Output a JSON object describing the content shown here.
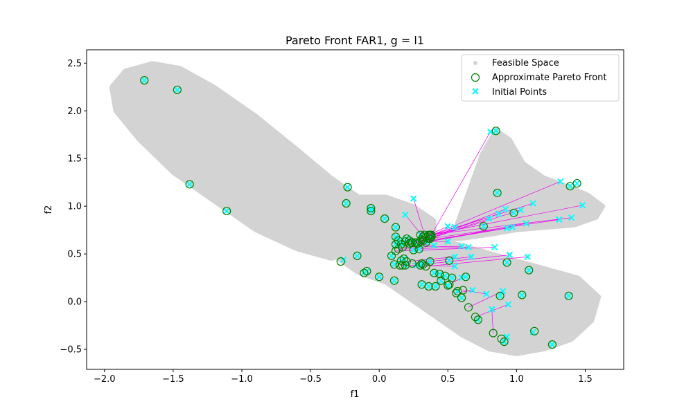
{
  "chart_data": {
    "type": "scatter",
    "title": "Pareto Front FAR1, g = l1",
    "xlabel": "f1",
    "ylabel": "f2",
    "xlim": [
      -2.13,
      1.78
    ],
    "ylim": [
      -0.71,
      2.64
    ],
    "xticks": [
      -2.0,
      -1.5,
      -1.0,
      -0.5,
      0.0,
      0.5,
      1.0,
      1.5
    ],
    "yticks": [
      -0.5,
      0.0,
      0.5,
      1.0,
      1.5,
      2.0,
      2.5
    ],
    "xtick_labels": [
      "−2.0",
      "−1.5",
      "−1.0",
      "−0.5",
      "0.0",
      "0.5",
      "1.0",
      "1.5"
    ],
    "ytick_labels": [
      "−0.5",
      "0.0",
      "0.5",
      "1.0",
      "1.5",
      "2.0",
      "2.5"
    ],
    "grid": false,
    "legend": {
      "position": "top-right",
      "entries": [
        "Feasible Space",
        "Approximate Pareto Front",
        "Initial Points"
      ]
    },
    "colors": {
      "feasible": "#d3d3d3",
      "pareto": "#008000",
      "initial": "#00ffff",
      "path": "#ee00ee"
    },
    "feasible_regions": {
      "upper_left_lobe": [
        [
          -1.95,
          2.25
        ],
        [
          -1.85,
          2.42
        ],
        [
          -1.65,
          2.5
        ],
        [
          -1.45,
          2.45
        ],
        [
          -1.2,
          2.25
        ],
        [
          -0.9,
          1.95
        ],
        [
          -0.6,
          1.6
        ],
        [
          -0.35,
          1.3
        ],
        [
          -0.15,
          1.1
        ],
        [
          0.05,
          1.1
        ],
        [
          0.25,
          1.0
        ],
        [
          0.4,
          0.85
        ],
        [
          0.4,
          0.65
        ],
        [
          0.2,
          0.55
        ],
        [
          0.0,
          0.55
        ],
        [
          -0.2,
          0.5
        ],
        [
          -0.35,
          0.45
        ],
        [
          -0.6,
          0.55
        ],
        [
          -0.9,
          0.75
        ],
        [
          -1.2,
          1.05
        ],
        [
          -1.5,
          1.35
        ],
        [
          -1.75,
          1.7
        ],
        [
          -1.92,
          2.0
        ]
      ],
      "upper_right_lobe": [
        [
          0.4,
          0.65
        ],
        [
          0.55,
          0.75
        ],
        [
          0.65,
          1.15
        ],
        [
          0.75,
          1.55
        ],
        [
          0.85,
          1.8
        ],
        [
          0.95,
          1.7
        ],
        [
          1.05,
          1.45
        ],
        [
          1.2,
          1.3
        ],
        [
          1.35,
          1.22
        ],
        [
          1.52,
          1.12
        ],
        [
          1.63,
          1.0
        ],
        [
          1.58,
          0.88
        ],
        [
          1.42,
          0.8
        ],
        [
          1.25,
          0.78
        ],
        [
          1.0,
          0.75
        ],
        [
          0.8,
          0.7
        ],
        [
          0.6,
          0.66
        ]
      ],
      "center_notch": [
        [
          0.2,
          1.0
        ],
        [
          0.3,
          0.95
        ],
        [
          0.4,
          0.85
        ],
        [
          0.35,
          0.7
        ],
        [
          0.2,
          0.6
        ],
        [
          0.1,
          0.75
        ],
        [
          0.1,
          0.92
        ]
      ],
      "lower_lobe": [
        [
          -0.3,
          0.45
        ],
        [
          -0.1,
          0.52
        ],
        [
          0.2,
          0.6
        ],
        [
          0.45,
          0.65
        ],
        [
          0.7,
          0.55
        ],
        [
          0.95,
          0.45
        ],
        [
          1.2,
          0.35
        ],
        [
          1.45,
          0.25
        ],
        [
          1.6,
          0.05
        ],
        [
          1.55,
          -0.2
        ],
        [
          1.4,
          -0.4
        ],
        [
          1.2,
          -0.5
        ],
        [
          1.0,
          -0.55
        ],
        [
          0.8,
          -0.5
        ],
        [
          0.6,
          -0.35
        ],
        [
          0.4,
          -0.15
        ],
        [
          0.2,
          0.05
        ],
        [
          0.05,
          0.2
        ],
        [
          -0.15,
          0.3
        ]
      ]
    },
    "pairs": [
      [
        [
          -1.71,
          2.32
        ],
        [
          -1.71,
          2.32
        ]
      ],
      [
        [
          -1.47,
          2.22
        ],
        [
          -1.47,
          2.22
        ]
      ],
      [
        [
          -1.38,
          1.23
        ],
        [
          -1.38,
          1.23
        ]
      ],
      [
        [
          -1.11,
          0.95
        ],
        [
          -1.11,
          0.95
        ]
      ],
      [
        [
          -0.23,
          1.2
        ],
        [
          -0.23,
          1.2
        ]
      ],
      [
        [
          -0.24,
          1.03
        ],
        [
          -0.24,
          1.03
        ]
      ],
      [
        [
          -0.06,
          0.98
        ],
        [
          -0.06,
          0.98
        ]
      ],
      [
        [
          -0.06,
          0.95
        ],
        [
          -0.06,
          0.95
        ]
      ],
      [
        [
          0.04,
          0.87
        ],
        [
          0.04,
          0.87
        ]
      ],
      [
        [
          0.12,
          0.78
        ],
        [
          0.12,
          0.78
        ]
      ],
      [
        [
          0.12,
          0.6
        ],
        [
          0.12,
          0.6
        ]
      ],
      [
        [
          0.11,
          0.22
        ],
        [
          0.11,
          0.22
        ]
      ],
      [
        [
          1.38,
          0.06
        ],
        [
          1.38,
          0.06
        ]
      ],
      [
        [
          1.04,
          0.07
        ],
        [
          1.04,
          0.07
        ]
      ],
      [
        [
          1.44,
          1.24
        ],
        [
          1.44,
          1.24
        ]
      ],
      [
        [
          1.39,
          1.21
        ],
        [
          1.39,
          1.21
        ]
      ],
      [
        [
          0.86,
          1.14
        ],
        [
          0.86,
          1.14
        ]
      ],
      [
        [
          0.63,
          0.26
        ],
        [
          0.63,
          0.26
        ]
      ],
      [
        [
          1.09,
          0.33
        ],
        [
          1.09,
          0.33
        ]
      ],
      [
        [
          0.93,
          0.41
        ],
        [
          0.93,
          0.41
        ]
      ],
      [
        [
          0.88,
          0.06
        ],
        [
          0.88,
          0.06
        ]
      ],
      [
        [
          1.26,
          -0.45
        ],
        [
          1.26,
          -0.45
        ]
      ],
      [
        [
          -0.26,
          0.44
        ],
        [
          -0.28,
          0.42
        ]
      ],
      [
        [
          0.25,
          1.08
        ],
        [
          0.33,
          0.7
        ]
      ],
      [
        [
          0.19,
          0.91
        ],
        [
          0.32,
          0.68
        ]
      ],
      [
        [
          0.81,
          1.78
        ],
        [
          0.38,
          0.7
        ]
      ],
      [
        [
          0.85,
          1.79
        ],
        [
          0.85,
          1.79
        ]
      ],
      [
        [
          1.32,
          1.26
        ],
        [
          0.37,
          0.69
        ]
      ],
      [
        [
          1.48,
          1.01
        ],
        [
          0.37,
          0.7
        ]
      ],
      [
        [
          1.12,
          1.03
        ],
        [
          0.34,
          0.68
        ]
      ],
      [
        [
          1.4,
          0.88
        ],
        [
          0.36,
          0.7
        ]
      ],
      [
        [
          1.31,
          0.86
        ],
        [
          0.37,
          0.66
        ]
      ],
      [
        [
          0.92,
          0.97
        ],
        [
          0.36,
          0.66
        ]
      ],
      [
        [
          0.98,
          0.93
        ],
        [
          0.98,
          0.93
        ]
      ],
      [
        [
          1.03,
          0.96
        ],
        [
          0.32,
          0.64
        ]
      ],
      [
        [
          0.87,
          0.92
        ],
        [
          0.31,
          0.65
        ]
      ],
      [
        [
          0.8,
          0.87
        ],
        [
          0.3,
          0.63
        ]
      ],
      [
        [
          1.07,
          0.82
        ],
        [
          0.28,
          0.61
        ]
      ],
      [
        [
          0.93,
          0.77
        ],
        [
          0.28,
          0.61
        ]
      ],
      [
        [
          0.97,
          0.78
        ],
        [
          0.27,
          0.62
        ]
      ],
      [
        [
          0.76,
          0.79
        ],
        [
          0.76,
          0.79
        ]
      ],
      [
        [
          0.5,
          0.79
        ],
        [
          0.24,
          0.62
        ]
      ],
      [
        [
          0.55,
          0.78
        ],
        [
          0.23,
          0.62
        ]
      ],
      [
        [
          0.4,
          0.59
        ],
        [
          0.22,
          0.61
        ]
      ],
      [
        [
          0.5,
          0.63
        ],
        [
          0.19,
          0.63
        ]
      ],
      [
        [
          0.6,
          0.58
        ],
        [
          0.17,
          0.57
        ]
      ],
      [
        [
          0.65,
          0.57
        ],
        [
          0.14,
          0.55
        ]
      ],
      [
        [
          0.84,
          0.57
        ],
        [
          0.12,
          0.53
        ]
      ],
      [
        [
          -0.09,
          0.32
        ],
        [
          -0.09,
          0.32
        ]
      ],
      [
        [
          -0.11,
          0.3
        ],
        [
          -0.11,
          0.3
        ]
      ],
      [
        [
          0.0,
          0.26
        ],
        [
          0.0,
          0.26
        ]
      ],
      [
        [
          0.27,
          0.38
        ],
        [
          0.15,
          0.38
        ]
      ],
      [
        [
          0.37,
          0.42
        ],
        [
          0.37,
          0.42
        ]
      ],
      [
        [
          0.3,
          0.38
        ],
        [
          0.3,
          0.38
        ]
      ],
      [
        [
          0.48,
          0.27
        ],
        [
          0.48,
          0.27
        ]
      ],
      [
        [
          0.36,
          0.16
        ],
        [
          0.36,
          0.16
        ]
      ],
      [
        [
          0.6,
          0.04
        ],
        [
          0.6,
          0.04
        ]
      ],
      [
        [
          0.72,
          -0.19
        ],
        [
          0.72,
          -0.19
        ]
      ],
      [
        [
          0.91,
          -0.42
        ],
        [
          0.91,
          -0.42
        ]
      ],
      [
        [
          0.55,
          0.37
        ],
        [
          0.17,
          0.38
        ]
      ],
      [
        [
          0.55,
          0.47
        ],
        [
          0.2,
          0.42
        ]
      ],
      [
        [
          0.67,
          0.47
        ],
        [
          0.24,
          0.4
        ]
      ],
      [
        [
          0.95,
          0.49
        ],
        [
          0.32,
          0.39
        ]
      ],
      [
        [
          1.08,
          0.47
        ],
        [
          0.34,
          0.37
        ]
      ],
      [
        [
          0.6,
          0.25
        ],
        [
          0.51,
          0.18
        ]
      ],
      [
        [
          0.68,
          0.12
        ],
        [
          0.56,
          0.09
        ]
      ],
      [
        [
          0.78,
          0.08
        ],
        [
          0.61,
          0.12
        ]
      ],
      [
        [
          0.9,
          0.11
        ],
        [
          0.65,
          -0.06
        ]
      ],
      [
        [
          0.94,
          -0.03
        ],
        [
          0.7,
          -0.16
        ]
      ],
      [
        [
          0.82,
          -0.08
        ],
        [
          0.83,
          -0.33
        ]
      ],
      [
        [
          0.93,
          -0.37
        ],
        [
          0.89,
          -0.39
        ]
      ],
      [
        [
          1.12,
          -0.32
        ],
        [
          1.13,
          -0.31
        ]
      ],
      [
        [
          0.18,
          0.45
        ],
        [
          0.18,
          0.45
        ]
      ],
      [
        [
          0.16,
          0.43
        ],
        [
          0.16,
          0.43
        ]
      ],
      [
        [
          0.19,
          0.38
        ],
        [
          0.19,
          0.38
        ]
      ],
      [
        [
          0.11,
          0.39
        ],
        [
          0.11,
          0.39
        ]
      ],
      [
        [
          0.12,
          0.68
        ],
        [
          0.12,
          0.68
        ]
      ],
      [
        [
          -0.16,
          0.48
        ],
        [
          -0.16,
          0.48
        ]
      ],
      [
        [
          0.09,
          0.48
        ],
        [
          0.09,
          0.48
        ]
      ],
      [
        [
          0.22,
          0.64
        ],
        [
          0.22,
          0.64
        ]
      ],
      [
        [
          0.26,
          0.62
        ],
        [
          0.26,
          0.62
        ]
      ],
      [
        [
          0.34,
          0.62
        ],
        [
          0.34,
          0.62
        ]
      ],
      [
        [
          0.29,
          0.55
        ],
        [
          0.29,
          0.55
        ]
      ],
      [
        [
          0.25,
          0.54
        ],
        [
          0.25,
          0.54
        ]
      ],
      [
        [
          0.31,
          0.4
        ],
        [
          0.31,
          0.4
        ]
      ],
      [
        [
          0.4,
          0.3
        ],
        [
          0.4,
          0.3
        ]
      ],
      [
        [
          0.44,
          0.29
        ],
        [
          0.44,
          0.29
        ]
      ],
      [
        [
          0.53,
          0.25
        ],
        [
          0.53,
          0.25
        ]
      ],
      [
        [
          0.45,
          0.22
        ],
        [
          0.45,
          0.22
        ]
      ],
      [
        [
          0.5,
          0.17
        ],
        [
          0.5,
          0.17
        ]
      ],
      [
        [
          0.31,
          0.18
        ],
        [
          0.31,
          0.18
        ]
      ],
      [
        [
          0.41,
          0.16
        ],
        [
          0.41,
          0.16
        ]
      ],
      [
        [
          0.57,
          0.11
        ],
        [
          0.57,
          0.11
        ]
      ],
      [
        [
          0.51,
          0.43
        ],
        [
          0.51,
          0.43
        ]
      ],
      [
        [
          0.38,
          0.68
        ],
        [
          0.38,
          0.68
        ]
      ],
      [
        [
          0.3,
          0.7
        ],
        [
          0.3,
          0.7
        ]
      ],
      [
        [
          0.2,
          0.66
        ],
        [
          0.2,
          0.66
        ]
      ],
      [
        [
          0.14,
          0.64
        ],
        [
          0.14,
          0.64
        ]
      ],
      [
        [
          0.16,
          0.6
        ],
        [
          0.16,
          0.6
        ]
      ]
    ]
  }
}
